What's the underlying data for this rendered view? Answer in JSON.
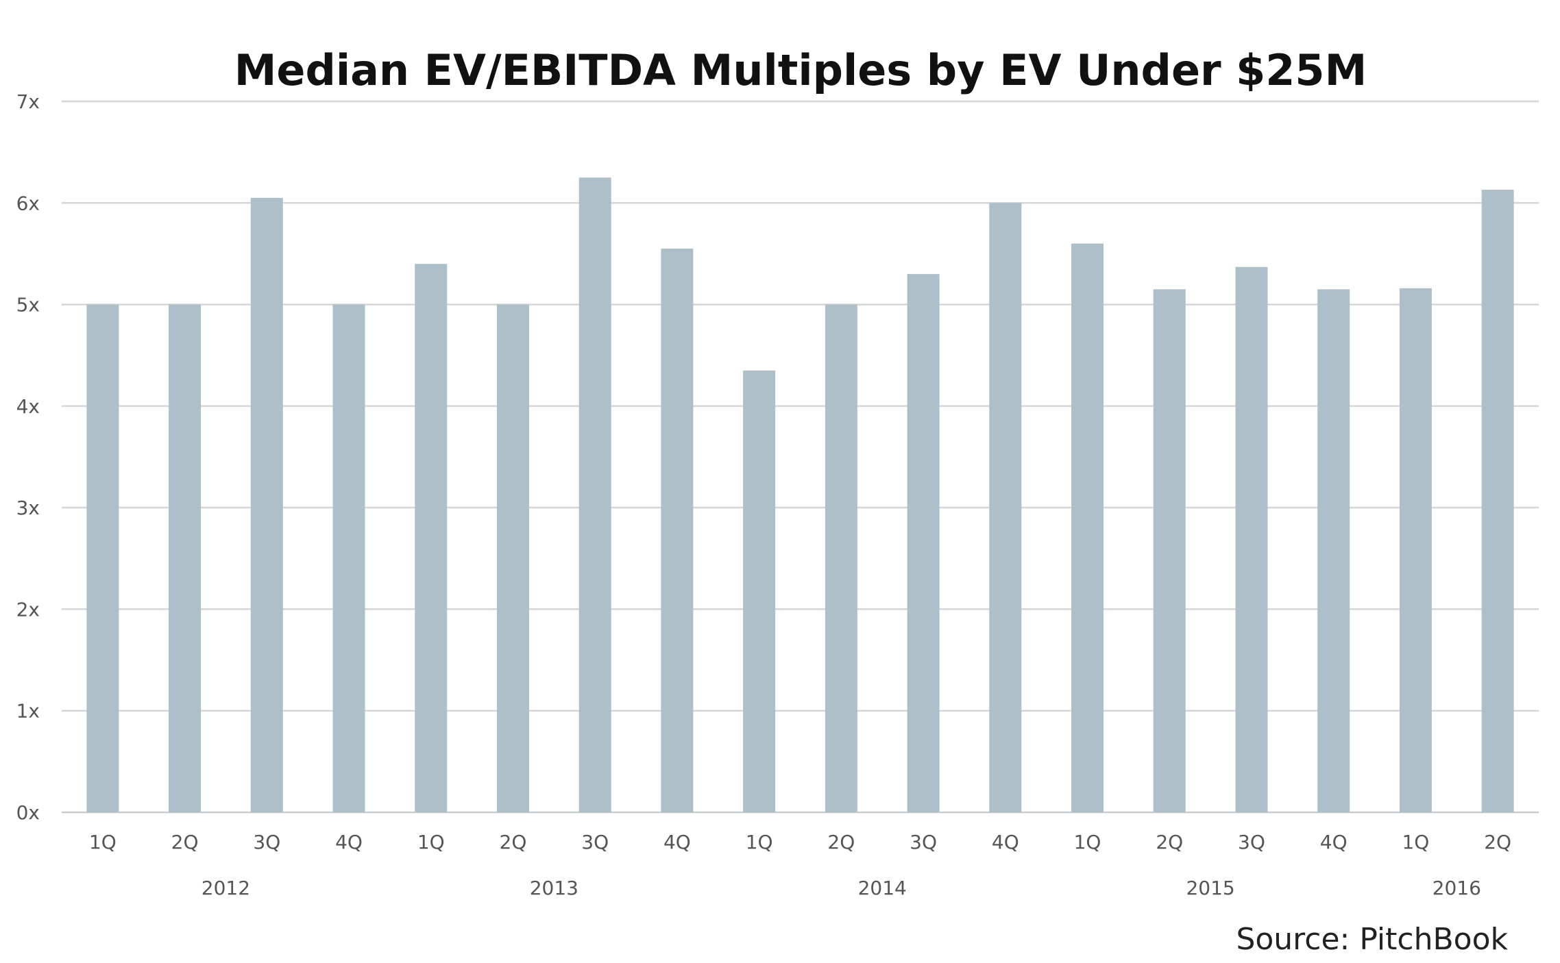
{
  "chart_data": {
    "type": "bar",
    "title": "Median EV/EBITDA Multiples by EV Under $25M",
    "categories": [
      "1Q",
      "2Q",
      "3Q",
      "4Q",
      "1Q",
      "2Q",
      "3Q",
      "4Q",
      "1Q",
      "2Q",
      "3Q",
      "4Q",
      "1Q",
      "2Q",
      "3Q",
      "4Q",
      "1Q",
      "2Q"
    ],
    "years": [
      {
        "label": "2012",
        "start": 0,
        "end": 3
      },
      {
        "label": "2013",
        "start": 4,
        "end": 7
      },
      {
        "label": "2014",
        "start": 8,
        "end": 11
      },
      {
        "label": "2015",
        "start": 12,
        "end": 15
      },
      {
        "label": "2016",
        "start": 16,
        "end": 17
      }
    ],
    "values": [
      5.0,
      5.0,
      6.05,
      5.0,
      5.4,
      5.0,
      6.25,
      5.55,
      4.35,
      5.0,
      5.3,
      6.0,
      5.6,
      5.15,
      5.37,
      5.15,
      5.16,
      6.13
    ],
    "y_ticks": [
      0,
      1,
      2,
      3,
      4,
      5,
      6,
      7
    ],
    "y_tick_labels": [
      "0x",
      "1x",
      "2x",
      "3x",
      "4x",
      "5x",
      "6x",
      "7x"
    ],
    "ylim": [
      0,
      7
    ],
    "grid": true,
    "bar_color": "#adc0ca",
    "source": "Source: PitchBook"
  }
}
